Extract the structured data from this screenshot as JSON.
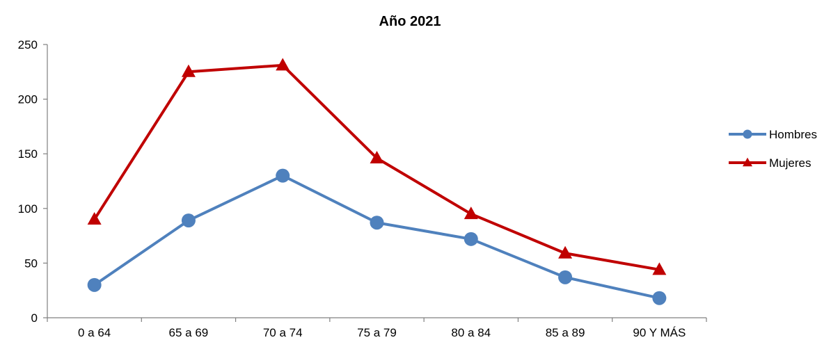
{
  "chart_data": {
    "type": "line",
    "title": "Año 2021",
    "xlabel": "",
    "ylabel": "",
    "categories": [
      "0 a 64",
      "65 a 69",
      "70 a 74",
      "75 a 79",
      "80 a 84",
      "85 a 89",
      "90 Y MÁS"
    ],
    "ylim": [
      0,
      250
    ],
    "yticks": [
      0,
      50,
      100,
      150,
      200,
      250
    ],
    "grid": false,
    "legend_position": "right",
    "series": [
      {
        "name": "Hombres",
        "values": [
          30,
          89,
          130,
          87,
          72,
          37,
          18
        ],
        "color": "#4F81BD",
        "marker": "circle"
      },
      {
        "name": "Mujeres",
        "values": [
          90,
          225,
          231,
          146,
          95,
          59,
          44
        ],
        "color": "#C00000",
        "marker": "triangle"
      }
    ]
  }
}
